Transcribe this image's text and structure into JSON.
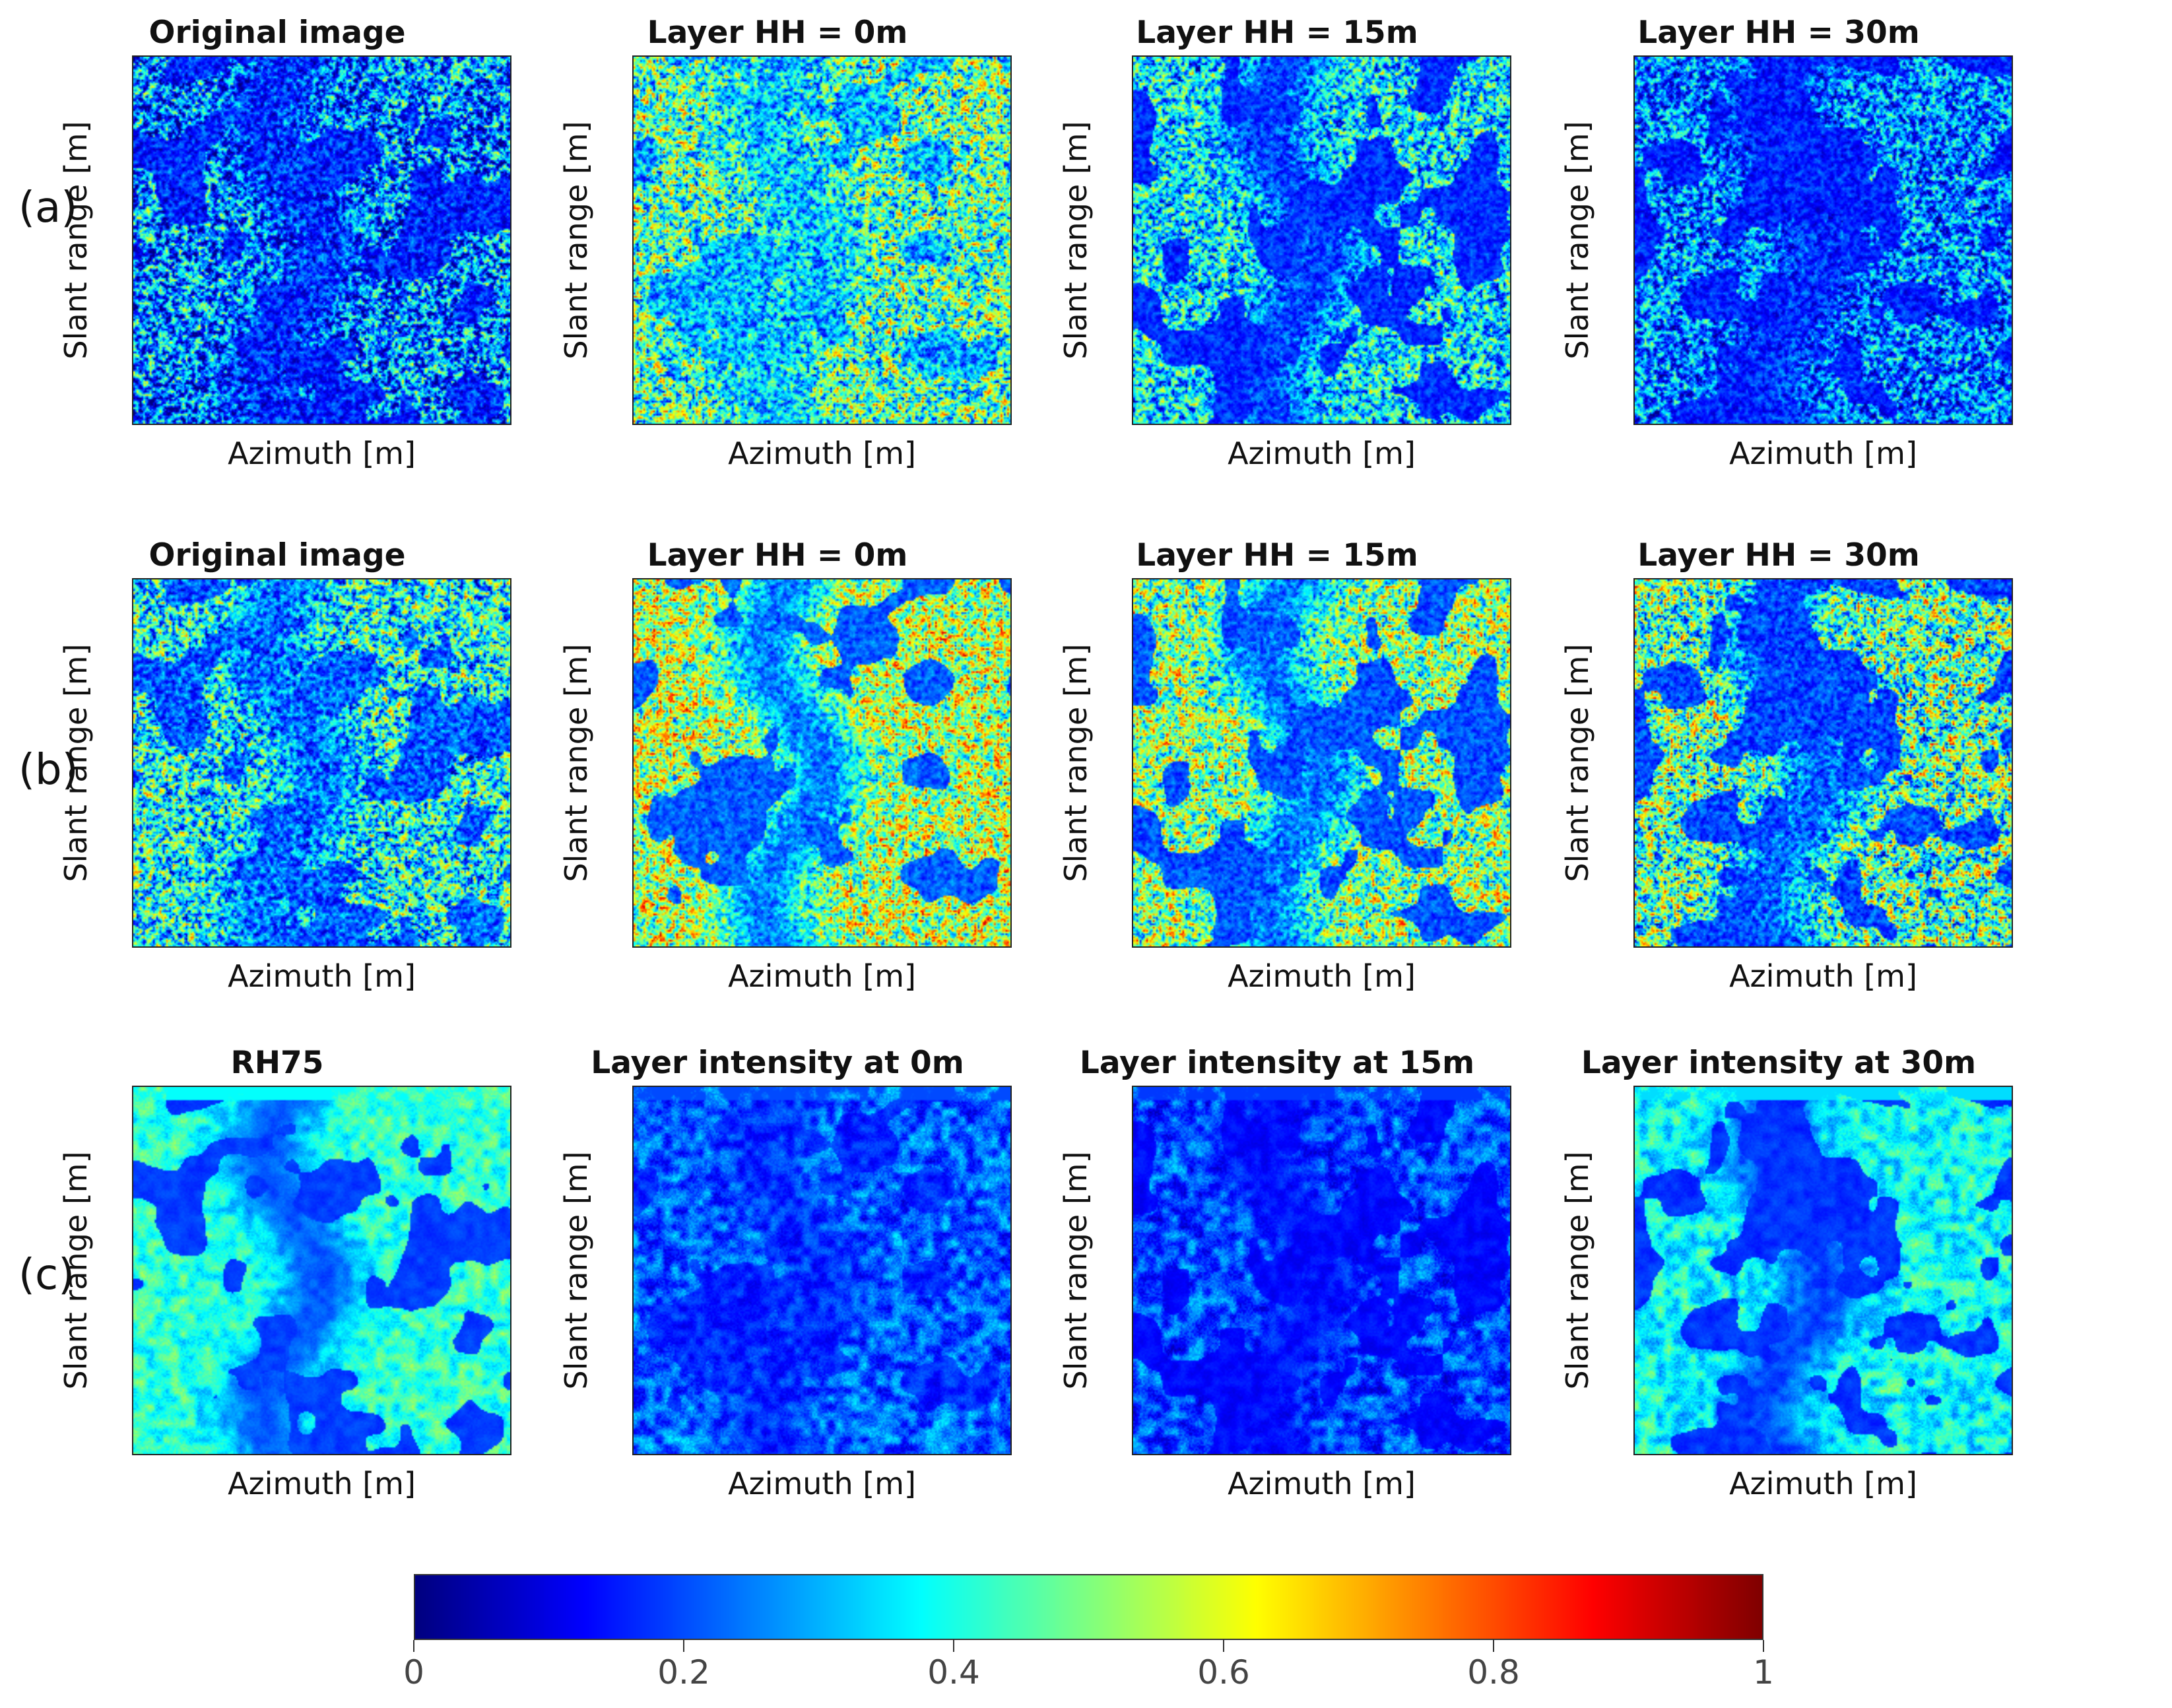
{
  "row_labels": [
    "(a)",
    "(b)",
    "(c)"
  ],
  "chart_data": [
    {
      "type": "heatmap",
      "row": "(a)",
      "title": "Original image",
      "xlabel": "Azimuth [m]",
      "ylabel": "Slant range [m]",
      "colormap": "jet",
      "clim": [
        0,
        1
      ],
      "mean_intensity": 0.25,
      "noise": 0.32,
      "dark_regions": 0.85
    },
    {
      "type": "heatmap",
      "row": "(a)",
      "title": "Layer HH = 0m",
      "xlabel": "Azimuth [m]",
      "ylabel": "Slant range [m]",
      "colormap": "jet",
      "clim": [
        0,
        1
      ],
      "mean_intensity": 0.45,
      "noise": 0.32,
      "dark_regions": 0.6
    },
    {
      "type": "heatmap",
      "row": "(a)",
      "title": "Layer HH = 15m",
      "xlabel": "Azimuth [m]",
      "ylabel": "Slant range [m]",
      "colormap": "jet",
      "clim": [
        0,
        1
      ],
      "mean_intensity": 0.35,
      "noise": 0.28,
      "dark_regions": 1.0
    },
    {
      "type": "heatmap",
      "row": "(a)",
      "title": "Layer HH = 30m",
      "xlabel": "Azimuth [m]",
      "ylabel": "Slant range [m]",
      "colormap": "jet",
      "clim": [
        0,
        1
      ],
      "mean_intensity": 0.25,
      "noise": 0.25,
      "dark_regions": 0.9
    },
    {
      "type": "heatmap",
      "row": "(b)",
      "title": "Original image",
      "xlabel": "Azimuth [m]",
      "ylabel": "Slant range [m]",
      "colormap": "jet",
      "clim": [
        0,
        1
      ],
      "mean_intensity": 0.38,
      "noise": 0.32,
      "dark_regions": 0.8
    },
    {
      "type": "heatmap",
      "row": "(b)",
      "title": "Layer HH = 0m",
      "xlabel": "Azimuth [m]",
      "ylabel": "Slant range [m]",
      "colormap": "jet",
      "clim": [
        0,
        1
      ],
      "mean_intensity": 0.55,
      "noise": 0.3,
      "dark_regions": 1.0
    },
    {
      "type": "heatmap",
      "row": "(b)",
      "title": "Layer HH = 15m",
      "xlabel": "Azimuth [m]",
      "ylabel": "Slant range [m]",
      "colormap": "jet",
      "clim": [
        0,
        1
      ],
      "mean_intensity": 0.5,
      "noise": 0.3,
      "dark_regions": 1.0
    },
    {
      "type": "heatmap",
      "row": "(b)",
      "title": "Layer HH = 30m",
      "xlabel": "Azimuth [m]",
      "ylabel": "Slant range [m]",
      "colormap": "jet",
      "clim": [
        0,
        1
      ],
      "mean_intensity": 0.45,
      "noise": 0.35,
      "dark_regions": 1.0
    },
    {
      "type": "heatmap",
      "row": "(c)",
      "title": "RH75",
      "xlabel": "Azimuth [m]",
      "ylabel": "Slant range [m]",
      "colormap": "jet",
      "clim": [
        0,
        1
      ],
      "mean_intensity": 0.42,
      "noise": 0.1,
      "dark_regions": 1.0
    },
    {
      "type": "heatmap",
      "row": "(c)",
      "title": "Layer intensity at 0m",
      "xlabel": "Azimuth [m]",
      "ylabel": "Slant range [m]",
      "colormap": "jet",
      "clim": [
        0,
        1
      ],
      "mean_intensity": 0.22,
      "noise": 0.12,
      "dark_regions": 0.7
    },
    {
      "type": "heatmap",
      "row": "(c)",
      "title": "Layer intensity at 15m",
      "xlabel": "Azimuth [m]",
      "ylabel": "Slant range [m]",
      "colormap": "jet",
      "clim": [
        0,
        1
      ],
      "mean_intensity": 0.2,
      "noise": 0.12,
      "dark_regions": 1.0
    },
    {
      "type": "heatmap",
      "row": "(c)",
      "title": "Layer intensity at 30m",
      "xlabel": "Azimuth [m]",
      "ylabel": "Slant range [m]",
      "colormap": "jet",
      "clim": [
        0,
        1
      ],
      "mean_intensity": 0.38,
      "noise": 0.12,
      "dark_regions": 1.0
    }
  ],
  "colorbar": {
    "colormap": "jet",
    "range": [
      0,
      1
    ],
    "ticks": [
      0,
      0.2,
      0.4,
      0.6,
      0.8,
      1
    ],
    "tick_labels": [
      "0",
      "0.2",
      "0.4",
      "0.6",
      "0.8",
      "1"
    ]
  }
}
